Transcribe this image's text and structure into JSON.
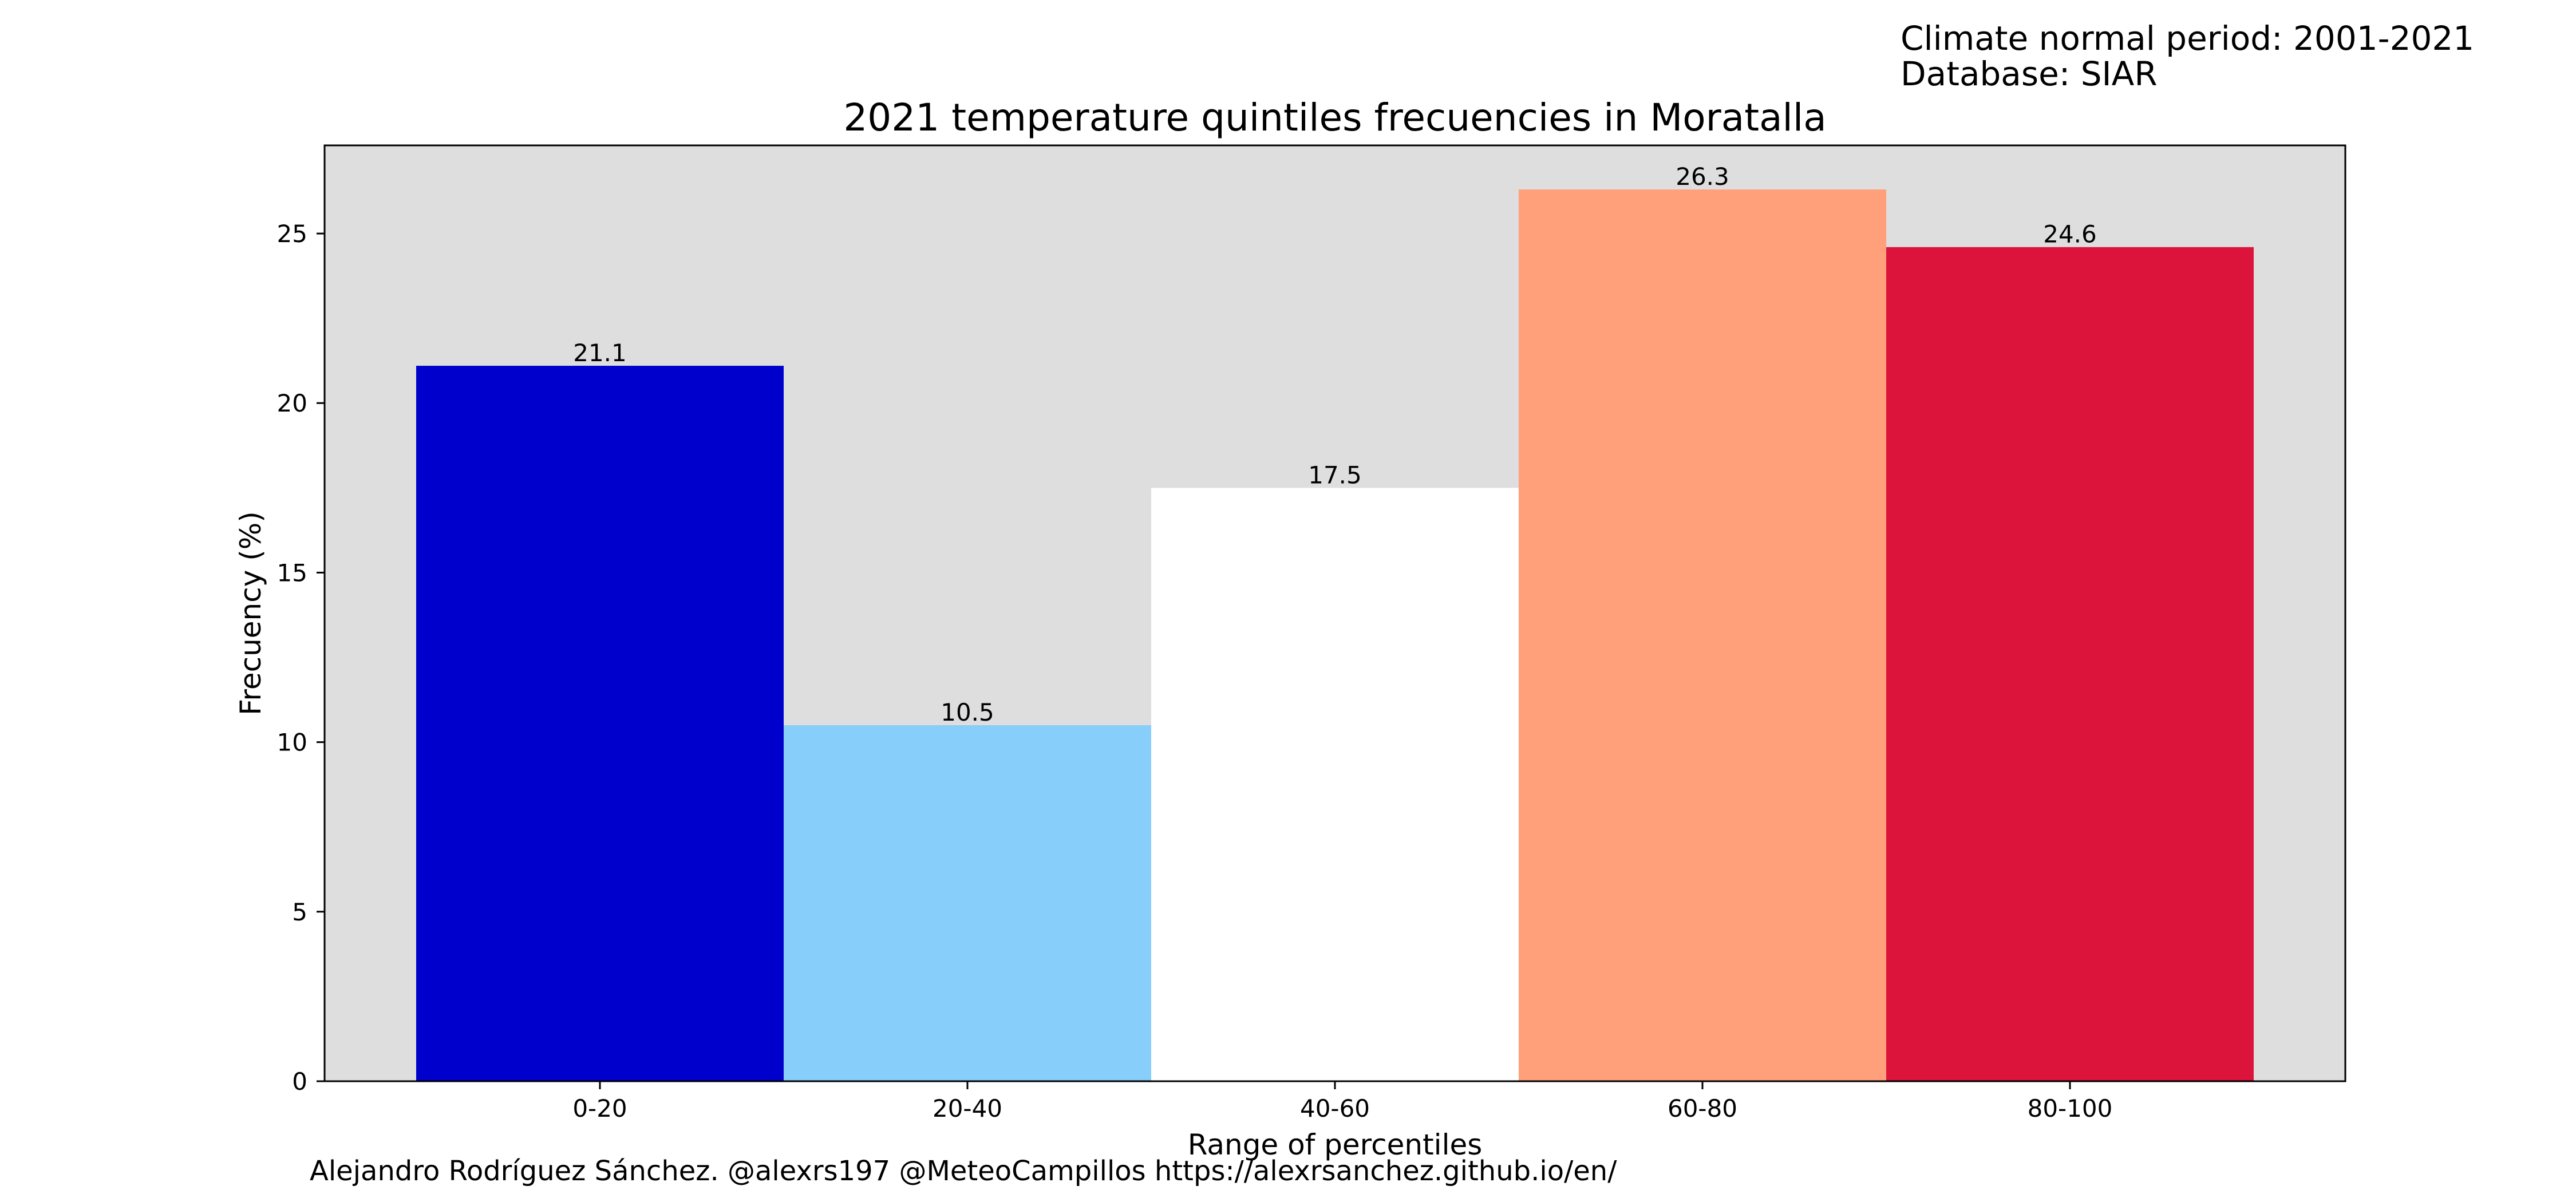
{
  "info": {
    "period": "Climate normal period: 2001-2021",
    "database": "Database: SIAR"
  },
  "credits": "Alejandro Rodríguez Sánchez. @alexrs197 @MeteoCampillos   https://alexrsanchez.github.io/en/",
  "colors": {
    "plot_background": "#dedede",
    "bars": [
      "#0000cd",
      "#87cefa",
      "#ffffff",
      "#ffa07a",
      "#dc143c"
    ]
  },
  "chart_data": {
    "type": "bar",
    "title": "2021 temperature quintiles frecuencies in Moratalla",
    "xlabel": "Range of percentiles",
    "ylabel": "Frecuency (%)",
    "categories": [
      "0-20",
      "20-40",
      "40-60",
      "60-80",
      "80-100"
    ],
    "values": [
      21.1,
      10.5,
      17.5,
      26.3,
      24.6
    ],
    "data_labels": [
      "21.1",
      "10.5",
      "17.5",
      "26.3",
      "24.6"
    ],
    "ylim": [
      0,
      27.6
    ],
    "yticks": [
      0,
      5,
      10,
      15,
      20,
      25
    ],
    "grid": false,
    "legend": "none"
  }
}
